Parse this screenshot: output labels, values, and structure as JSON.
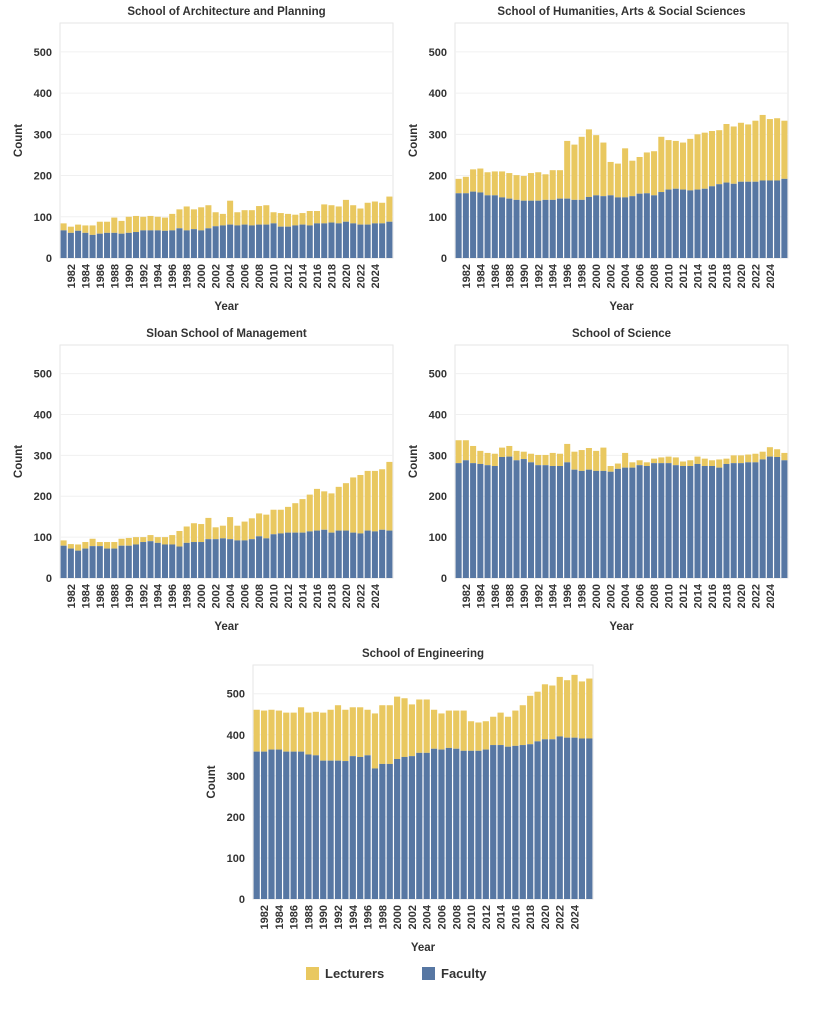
{
  "legend": {
    "items": [
      {
        "label": "Lecturers",
        "color": "#E9C860"
      },
      {
        "label": "Faculty",
        "color": "#5777A3"
      }
    ]
  },
  "chart_data": [
    {
      "type": "bar",
      "stacked": true,
      "title": "School of Architecture and Planning",
      "xlabel": "Year",
      "ylabel": "Count",
      "ylim": [
        0,
        570
      ],
      "yticks": [
        0,
        100,
        200,
        300,
        400,
        500
      ],
      "xticks": [
        "1982",
        "1984",
        "1986",
        "1988",
        "1990",
        "1992",
        "1994",
        "1996",
        "1998",
        "2000",
        "2002",
        "2004",
        "2006",
        "2008",
        "2010",
        "2012",
        "2014",
        "2016",
        "2018",
        "2020",
        "2022",
        "2024"
      ],
      "grid": true,
      "legend": "bottom-center",
      "categories": [
        1981,
        1982,
        1983,
        1984,
        1985,
        1986,
        1987,
        1988,
        1989,
        1990,
        1991,
        1992,
        1993,
        1994,
        1995,
        1996,
        1997,
        1998,
        1999,
        2000,
        2001,
        2002,
        2003,
        2004,
        2005,
        2006,
        2007,
        2008,
        2009,
        2010,
        2011,
        2012,
        2013,
        2014,
        2015,
        2016,
        2017,
        2018,
        2019,
        2020,
        2021,
        2022,
        2023,
        2024,
        2025,
        2026
      ],
      "series": [
        {
          "name": "Faculty",
          "values": [
            67,
            61,
            66,
            61,
            56,
            59,
            61,
            61,
            59,
            61,
            63,
            67,
            67,
            67,
            66,
            67,
            72,
            67,
            70,
            67,
            72,
            77,
            79,
            81,
            79,
            81,
            79,
            81,
            81,
            84,
            76,
            76,
            79,
            81,
            79,
            84,
            84,
            86,
            84,
            88,
            84,
            81,
            81,
            84,
            84,
            88
          ]
        },
        {
          "name": "Lecturers",
          "values": [
            17,
            15,
            15,
            18,
            23,
            29,
            27,
            37,
            31,
            39,
            39,
            33,
            35,
            33,
            32,
            40,
            46,
            58,
            48,
            56,
            56,
            34,
            28,
            58,
            32,
            35,
            37,
            45,
            47,
            27,
            33,
            31,
            26,
            28,
            35,
            30,
            46,
            42,
            41,
            53,
            44,
            39,
            53,
            53,
            50,
            61
          ]
        }
      ]
    },
    {
      "type": "bar",
      "stacked": true,
      "title": "School of Humanities, Arts & Social Sciences",
      "xlabel": "Year",
      "ylabel": "Count",
      "ylim": [
        0,
        570
      ],
      "yticks": [
        0,
        100,
        200,
        300,
        400,
        500
      ],
      "xticks": [
        "1982",
        "1984",
        "1986",
        "1988",
        "1990",
        "1992",
        "1994",
        "1996",
        "1998",
        "2000",
        "2002",
        "2004",
        "2006",
        "2008",
        "2010",
        "2012",
        "2014",
        "2016",
        "2018",
        "2020",
        "2022",
        "2024"
      ],
      "grid": true,
      "categories": [
        1981,
        1982,
        1983,
        1984,
        1985,
        1986,
        1987,
        1988,
        1989,
        1990,
        1991,
        1992,
        1993,
        1994,
        1995,
        1996,
        1997,
        1998,
        1999,
        2000,
        2001,
        2002,
        2003,
        2004,
        2005,
        2006,
        2007,
        2008,
        2009,
        2010,
        2011,
        2012,
        2013,
        2014,
        2015,
        2016,
        2017,
        2018,
        2019,
        2020,
        2021,
        2022,
        2023,
        2024,
        2025,
        2026
      ],
      "series": [
        {
          "name": "Faculty",
          "values": [
            157,
            157,
            161,
            159,
            152,
            152,
            147,
            144,
            141,
            139,
            139,
            139,
            141,
            141,
            144,
            144,
            141,
            141,
            148,
            152,
            150,
            152,
            147,
            147,
            150,
            156,
            157,
            152,
            160,
            166,
            168,
            166,
            164,
            166,
            168,
            174,
            179,
            183,
            180,
            185,
            185,
            185,
            188,
            188,
            188,
            192
          ]
        },
        {
          "name": "Lecturers",
          "values": [
            35,
            40,
            54,
            58,
            56,
            58,
            63,
            62,
            60,
            60,
            67,
            69,
            62,
            72,
            69,
            140,
            134,
            153,
            164,
            146,
            130,
            81,
            82,
            119,
            86,
            89,
            99,
            107,
            134,
            120,
            116,
            114,
            125,
            134,
            136,
            134,
            131,
            142,
            139,
            143,
            139,
            148,
            159,
            149,
            151,
            141
          ]
        }
      ]
    },
    {
      "type": "bar",
      "stacked": true,
      "title": "Sloan School of Management",
      "xlabel": "Year",
      "ylabel": "Count",
      "ylim": [
        0,
        570
      ],
      "yticks": [
        0,
        100,
        200,
        300,
        400,
        500
      ],
      "xticks": [
        "1982",
        "1984",
        "1986",
        "1988",
        "1990",
        "1992",
        "1994",
        "1996",
        "1998",
        "2000",
        "2002",
        "2004",
        "2006",
        "2008",
        "2010",
        "2012",
        "2014",
        "2016",
        "2018",
        "2020",
        "2022",
        "2024"
      ],
      "grid": true,
      "categories": [
        1981,
        1982,
        1983,
        1984,
        1985,
        1986,
        1987,
        1988,
        1989,
        1990,
        1991,
        1992,
        1993,
        1994,
        1995,
        1996,
        1997,
        1998,
        1999,
        2000,
        2001,
        2002,
        2003,
        2004,
        2005,
        2006,
        2007,
        2008,
        2009,
        2010,
        2011,
        2012,
        2013,
        2014,
        2015,
        2016,
        2017,
        2018,
        2019,
        2020,
        2021,
        2022,
        2023,
        2024,
        2025,
        2026
      ],
      "series": [
        {
          "name": "Faculty",
          "values": [
            79,
            72,
            67,
            72,
            78,
            78,
            72,
            72,
            79,
            79,
            82,
            88,
            90,
            86,
            82,
            82,
            77,
            86,
            88,
            88,
            95,
            95,
            97,
            95,
            92,
            92,
            95,
            102,
            97,
            107,
            109,
            111,
            111,
            111,
            114,
            116,
            118,
            111,
            116,
            116,
            111,
            109,
            116,
            114,
            118,
            116
          ]
        },
        {
          "name": "Lecturers",
          "values": [
            13,
            11,
            15,
            16,
            18,
            10,
            16,
            16,
            17,
            19,
            18,
            12,
            15,
            14,
            18,
            23,
            38,
            40,
            46,
            44,
            52,
            29,
            31,
            54,
            36,
            46,
            51,
            56,
            58,
            60,
            58,
            63,
            72,
            82,
            90,
            102,
            94,
            96,
            107,
            116,
            135,
            143,
            146,
            148,
            148,
            168
          ]
        }
      ]
    },
    {
      "type": "bar",
      "stacked": true,
      "title": "School of Science",
      "xlabel": "Year",
      "ylabel": "Count",
      "ylim": [
        0,
        570
      ],
      "yticks": [
        0,
        100,
        200,
        300,
        400,
        500
      ],
      "xticks": [
        "1982",
        "1984",
        "1986",
        "1988",
        "1990",
        "1992",
        "1994",
        "1996",
        "1998",
        "2000",
        "2002",
        "2004",
        "2006",
        "2008",
        "2010",
        "2012",
        "2014",
        "2016",
        "2018",
        "2020",
        "2022",
        "2024"
      ],
      "grid": true,
      "categories": [
        1981,
        1982,
        1983,
        1984,
        1985,
        1986,
        1987,
        1988,
        1989,
        1990,
        1991,
        1992,
        1993,
        1994,
        1995,
        1996,
        1997,
        1998,
        1999,
        2000,
        2001,
        2002,
        2003,
        2004,
        2005,
        2006,
        2007,
        2008,
        2009,
        2010,
        2011,
        2012,
        2013,
        2014,
        2015,
        2016,
        2017,
        2018,
        2019,
        2020,
        2021,
        2022,
        2023,
        2024,
        2025,
        2026
      ],
      "series": [
        {
          "name": "Faculty",
          "values": [
            281,
            288,
            281,
            279,
            276,
            274,
            296,
            297,
            288,
            291,
            283,
            276,
            276,
            274,
            274,
            283,
            265,
            262,
            265,
            262,
            262,
            260,
            267,
            270,
            270,
            276,
            274,
            281,
            281,
            281,
            276,
            274,
            274,
            279,
            274,
            274,
            270,
            279,
            281,
            281,
            283,
            283,
            290,
            297,
            296,
            288
          ]
        },
        {
          "name": "Lecturers",
          "values": [
            56,
            49,
            42,
            32,
            30,
            30,
            23,
            26,
            23,
            18,
            21,
            25,
            25,
            32,
            30,
            45,
            44,
            51,
            53,
            49,
            57,
            14,
            13,
            36,
            13,
            12,
            9,
            11,
            14,
            16,
            19,
            11,
            14,
            18,
            18,
            14,
            20,
            13,
            19,
            19,
            19,
            21,
            19,
            23,
            19,
            18
          ]
        }
      ]
    },
    {
      "type": "bar",
      "stacked": true,
      "title": "School of Engineering",
      "xlabel": "Year",
      "ylabel": "Count",
      "ylim": [
        0,
        570
      ],
      "yticks": [
        0,
        100,
        200,
        300,
        400,
        500
      ],
      "xticks": [
        "1982",
        "1984",
        "1986",
        "1988",
        "1990",
        "1992",
        "1994",
        "1996",
        "1998",
        "2000",
        "2002",
        "2004",
        "2006",
        "2008",
        "2010",
        "2012",
        "2014",
        "2016",
        "2018",
        "2020",
        "2022",
        "2024"
      ],
      "grid": true,
      "categories": [
        1981,
        1982,
        1983,
        1984,
        1985,
        1986,
        1987,
        1988,
        1989,
        1990,
        1991,
        1992,
        1993,
        1994,
        1995,
        1996,
        1997,
        1998,
        1999,
        2000,
        2001,
        2002,
        2003,
        2004,
        2005,
        2006,
        2007,
        2008,
        2009,
        2010,
        2011,
        2012,
        2013,
        2014,
        2015,
        2016,
        2017,
        2018,
        2019,
        2020,
        2021,
        2022,
        2023,
        2024,
        2025,
        2026
      ],
      "series": [
        {
          "name": "Faculty",
          "values": [
            359,
            359,
            364,
            364,
            359,
            359,
            359,
            352,
            350,
            337,
            337,
            337,
            336,
            348,
            346,
            350,
            318,
            329,
            329,
            341,
            346,
            348,
            356,
            356,
            366,
            364,
            368,
            366,
            361,
            361,
            361,
            364,
            375,
            375,
            371,
            373,
            375,
            377,
            384,
            389,
            389,
            396,
            393,
            393,
            391,
            391
          ]
        },
        {
          "name": "Lecturers",
          "values": [
            102,
            100,
            97,
            95,
            95,
            95,
            108,
            102,
            106,
            117,
            124,
            135,
            125,
            119,
            121,
            111,
            134,
            143,
            143,
            152,
            143,
            126,
            130,
            130,
            95,
            88,
            91,
            93,
            98,
            72,
            69,
            69,
            69,
            79,
            73,
            86,
            97,
            118,
            121,
            134,
            131,
            145,
            140,
            153,
            139,
            146
          ]
        }
      ]
    }
  ]
}
